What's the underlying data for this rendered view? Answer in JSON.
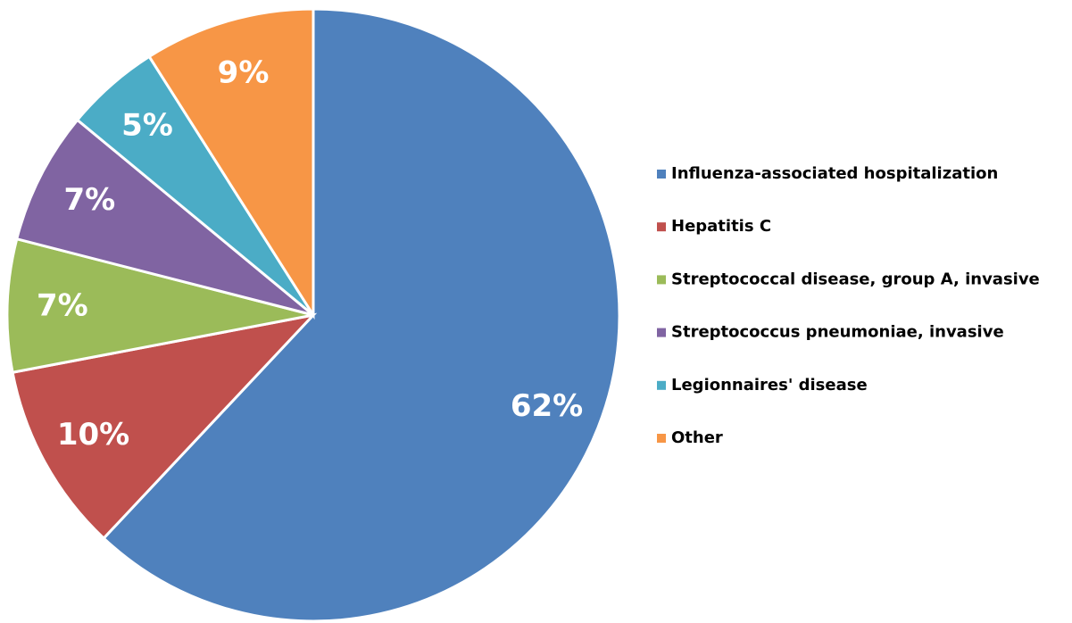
{
  "chart_data": {
    "type": "pie",
    "categories": [
      "Influenza-associated hospitalization",
      "Hepatitis C",
      "Streptococcal disease, group A, invasive",
      "Streptococcus pneumoniae, invasive",
      "Legionnaires' disease",
      "Other"
    ],
    "values": [
      62,
      10,
      7,
      7,
      5,
      9
    ],
    "value_labels": [
      "62%",
      "10%",
      "7%",
      "7%",
      "5%",
      "9%"
    ],
    "colors": [
      "#4f81bd",
      "#c0504d",
      "#9bbb59",
      "#8064a2",
      "#4bacc6",
      "#f79646"
    ],
    "legend": "right"
  }
}
